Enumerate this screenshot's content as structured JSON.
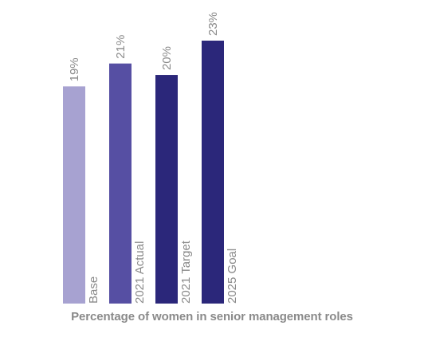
{
  "chart_data": {
    "type": "bar",
    "categories": [
      "Base",
      "2021 Actual",
      "2021 Target",
      "2025 Goal"
    ],
    "values": [
      19,
      21,
      20,
      23
    ],
    "value_labels": [
      "19%",
      "21%",
      "20%",
      "23%"
    ],
    "title": "",
    "xlabel": "Percentage of women in senior management roles",
    "ylabel": "",
    "ylim": [
      0,
      23
    ],
    "grid": false,
    "legend": "none",
    "colors": [
      "#a7a2d1",
      "#564fa3",
      "#2b277a",
      "#2b277a"
    ]
  }
}
